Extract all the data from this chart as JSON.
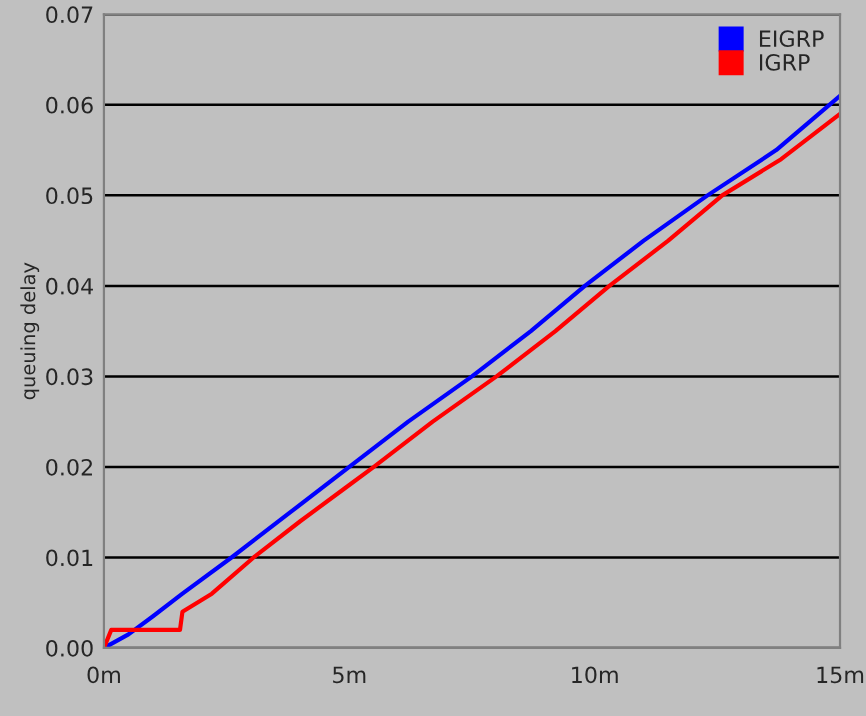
{
  "chart_data": {
    "type": "line",
    "ylabel": "queuing delay",
    "xlim": [
      0,
      15
    ],
    "xticks": [
      {
        "value": 0,
        "label": "0m"
      },
      {
        "value": 5,
        "label": "5m"
      },
      {
        "value": 10,
        "label": "10m"
      },
      {
        "value": 15,
        "label": "15m"
      }
    ],
    "ylim": [
      0,
      0.07
    ],
    "yticks": [
      {
        "value": 0,
        "label": "0.00"
      },
      {
        "value": 0.01,
        "label": "0.01"
      },
      {
        "value": 0.02,
        "label": "0.02"
      },
      {
        "value": 0.03,
        "label": "0.03"
      },
      {
        "value": 0.04,
        "label": "0.04"
      },
      {
        "value": 0.05,
        "label": "0.05"
      },
      {
        "value": 0.06,
        "label": "0.06"
      },
      {
        "value": 0.07,
        "label": "0.07"
      }
    ],
    "grid": "y",
    "legend": "top right",
    "line_style": "solid",
    "marker": "none",
    "series": [
      {
        "name": "EIGRP",
        "color": "#0000ff",
        "x": [
          0,
          0.5,
          1,
          1.6,
          2.6,
          3.8,
          5,
          6.2,
          7.5,
          8.7,
          9.8,
          11,
          12.3,
          13.7,
          15
        ],
        "values": [
          0,
          0.0015,
          0.0035,
          0.006,
          0.01,
          0.015,
          0.02,
          0.025,
          0.03,
          0.035,
          0.04,
          0.045,
          0.05,
          0.055,
          0.061
        ]
      },
      {
        "name": "IGRP",
        "color": "#ff0000",
        "x": [
          0,
          0.15,
          0.5,
          1.55,
          1.6,
          2.2,
          3.05,
          4,
          5,
          5.5,
          6.7,
          8,
          9.2,
          10.3,
          11.5,
          12.6,
          13.8,
          15
        ],
        "values": [
          0,
          0.002,
          0.002,
          0.002,
          0.004,
          0.006,
          0.01,
          0.014,
          0.018,
          0.02,
          0.025,
          0.03,
          0.035,
          0.04,
          0.045,
          0.05,
          0.054,
          0.059
        ]
      }
    ]
  }
}
